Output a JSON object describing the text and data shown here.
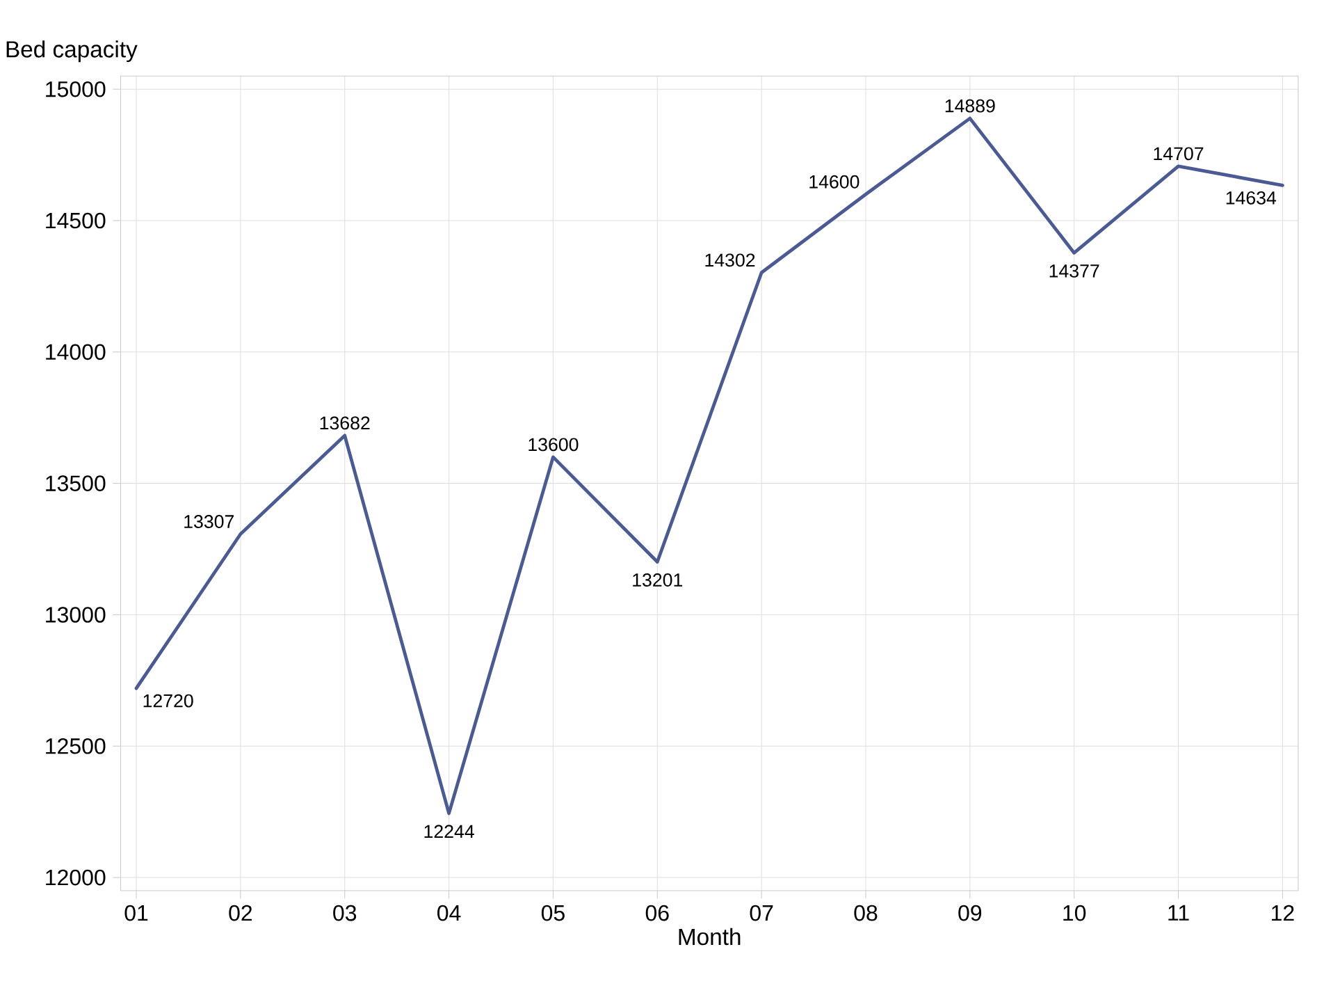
{
  "chart_data": {
    "type": "line",
    "xlabel": "Month",
    "ylabel": "Bed capacity",
    "categories": [
      "01",
      "02",
      "03",
      "04",
      "05",
      "06",
      "07",
      "08",
      "09",
      "10",
      "11",
      "12"
    ],
    "series": [
      {
        "color": "#4a5a94",
        "values": [
          12720,
          13307,
          13682,
          12244,
          13600,
          13201,
          14302,
          14600,
          14889,
          14377,
          14707,
          14634
        ]
      }
    ],
    "ylim": [
      11950,
      15050
    ],
    "yticks": [
      12000,
      12500,
      13000,
      13500,
      14000,
      14500,
      15000
    ],
    "grid": true,
    "data_labels": true,
    "marker": "none",
    "line_style": "solid"
  }
}
